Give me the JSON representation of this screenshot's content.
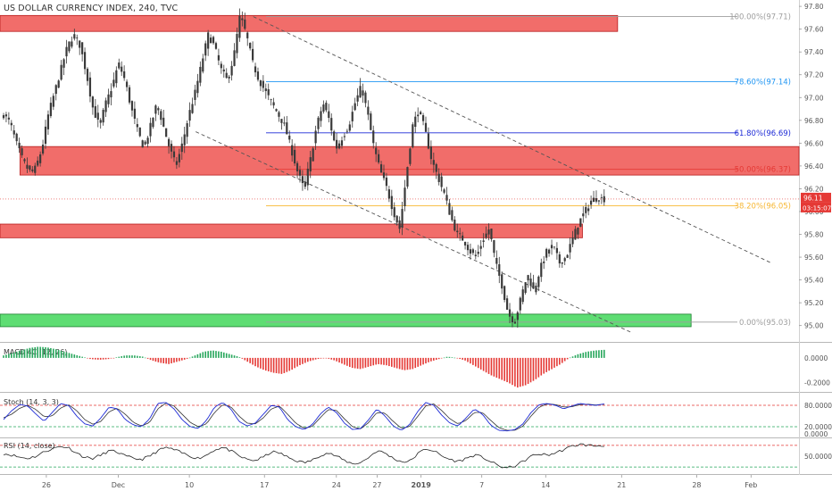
{
  "header": {
    "title": "US DOLLAR CURRENCY INDEX, 240, TVC"
  },
  "colors": {
    "zone_red": "#ef5350",
    "zone_red_border": "#b71c1c",
    "zone_green": "#4cd964",
    "zone_green_border": "#1b7d2e",
    "candle": "#3a3a3a",
    "fib_100": "#9e9e9e",
    "fib_786": "#2196f3",
    "fib_618": "#1e2bd6",
    "fib_500": "#e53935",
    "fib_382": "#f7b733",
    "fib_0": "#9e9e9e",
    "price_badge": "#e53935",
    "macd_pos": "#26a65b",
    "macd_neg": "#e53935",
    "stoch_k": "#1e2bd6",
    "stoch_d": "#333333",
    "rsi": "#222222",
    "upper_band": "#e53935",
    "lower_band": "#26a65b"
  },
  "chart_data": [
    {
      "id": "price",
      "type": "candlestick",
      "title": "US DOLLAR CURRENCY INDEX, 240, TVC",
      "ylim": [
        94.88,
        97.84
      ],
      "y_ticks": [
        "97.80",
        "97.60",
        "97.40",
        "97.20",
        "97.00",
        "96.80",
        "96.60",
        "96.40",
        "96.20",
        "96.00",
        "95.80",
        "95.60",
        "95.40",
        "95.20",
        "95.00"
      ],
      "x_ticks": [
        "26",
        "Dec",
        "10",
        "17",
        "24",
        "27",
        "2019",
        "7",
        "14",
        "21",
        "28",
        "Feb"
      ],
      "x_tick_pos": [
        0.058,
        0.148,
        0.237,
        0.331,
        0.421,
        0.472,
        0.527,
        0.603,
        0.683,
        0.778,
        0.872,
        0.94
      ],
      "path": [
        96.85,
        96.78,
        96.6,
        96.45,
        96.35,
        96.38,
        96.55,
        96.85,
        97.05,
        97.25,
        97.45,
        97.55,
        97.45,
        97.2,
        96.9,
        96.75,
        96.95,
        97.1,
        97.3,
        97.15,
        96.9,
        96.7,
        96.55,
        96.75,
        96.95,
        96.75,
        96.55,
        96.4,
        96.6,
        96.85,
        97.05,
        97.3,
        97.55,
        97.45,
        97.25,
        97.15,
        97.35,
        97.72,
        97.55,
        97.3,
        97.15,
        97.05,
        96.95,
        96.85,
        96.75,
        96.55,
        96.35,
        96.2,
        96.45,
        96.75,
        96.95,
        96.8,
        96.55,
        96.65,
        96.75,
        96.95,
        97.1,
        96.85,
        96.55,
        96.35,
        96.2,
        96.0,
        95.85,
        96.3,
        96.75,
        96.9,
        96.7,
        96.45,
        96.3,
        96.15,
        95.95,
        95.8,
        95.75,
        95.65,
        95.6,
        95.75,
        95.85,
        95.55,
        95.35,
        95.1,
        95.03,
        95.25,
        95.45,
        95.3,
        95.5,
        95.65,
        95.7,
        95.55,
        95.6,
        95.75,
        95.9,
        96.0,
        96.1,
        96.12,
        96.11
      ],
      "zones": [
        {
          "name": "resistance-top",
          "kind": "red",
          "from": 97.58,
          "to": 97.72,
          "x0": 0.0,
          "x1": 0.773
        },
        {
          "name": "mid-zone",
          "kind": "red",
          "from": 96.32,
          "to": 96.57,
          "x0": 0.025,
          "x1": 1.0
        },
        {
          "name": "lower-zone",
          "kind": "red",
          "from": 95.77,
          "to": 95.89,
          "x0": 0.0,
          "x1": 0.729
        },
        {
          "name": "support-zone",
          "kind": "green",
          "from": 94.99,
          "to": 95.1,
          "x0": 0.0,
          "x1": 0.865
        }
      ],
      "fib_levels": [
        {
          "label": "100.00%(97.71)",
          "value": 97.71,
          "color_key": "fib_100"
        },
        {
          "label": "78.60%(97.14)",
          "value": 97.14,
          "color_key": "fib_786"
        },
        {
          "label": "61.80%(96.69)",
          "value": 96.69,
          "color_key": "fib_618"
        },
        {
          "label": "50.00%(96.37)",
          "value": 96.37,
          "color_key": "fib_500"
        },
        {
          "label": "38.20%(96.05)",
          "value": 96.05,
          "color_key": "fib_382"
        },
        {
          "label": "0.00%(95.03)",
          "value": 95.03,
          "color_key": "fib_0"
        }
      ],
      "channel_lines": [
        {
          "name": "upper",
          "from": [
            0.317,
            97.71
          ],
          "to": [
            0.965,
            95.55
          ]
        },
        {
          "name": "lower",
          "from": [
            0.245,
            96.7
          ],
          "to": [
            0.79,
            94.94
          ]
        }
      ],
      "current_price": "96.11",
      "countdown": "03:15:07",
      "current_price_value": 96.11
    },
    {
      "id": "macd",
      "type": "histogram",
      "title": "MACD 4C (12, 26)",
      "ylim": [
        -0.26,
        0.1
      ],
      "y_ticks": [
        "0.0000",
        "-0.2000"
      ],
      "path": [
        0.02,
        0.04,
        0.06,
        0.08,
        0.09,
        0.085,
        0.07,
        0.05,
        0.03,
        0.01,
        -0.01,
        -0.015,
        -0.01,
        0.005,
        0.02,
        0.02,
        0.01,
        -0.02,
        -0.04,
        -0.05,
        -0.03,
        -0.01,
        0.02,
        0.05,
        0.06,
        0.05,
        0.03,
        0.01,
        -0.03,
        -0.07,
        -0.1,
        -0.12,
        -0.13,
        -0.1,
        -0.06,
        -0.03,
        -0.01,
        0.0,
        -0.02,
        -0.05,
        -0.08,
        -0.09,
        -0.07,
        -0.05,
        -0.06,
        -0.08,
        -0.1,
        -0.09,
        -0.06,
        -0.03,
        -0.01,
        0.01,
        0.0,
        -0.02,
        -0.06,
        -0.1,
        -0.14,
        -0.17,
        -0.2,
        -0.24,
        -0.22,
        -0.18,
        -0.13,
        -0.09,
        -0.05,
        0.0,
        0.03,
        0.05,
        0.06,
        0.065
      ]
    },
    {
      "id": "stoch",
      "type": "line",
      "title": "Stoch (14, 3, 3)",
      "ylim": [
        -5,
        105
      ],
      "y_ticks": [
        "80.0000",
        "20.0000",
        "0.0000"
      ],
      "bands": [
        80,
        20
      ],
      "path_k": [
        40,
        65,
        82,
        78,
        55,
        35,
        60,
        85,
        80,
        50,
        28,
        22,
        45,
        75,
        70,
        40,
        25,
        20,
        42,
        85,
        88,
        70,
        40,
        20,
        15,
        38,
        75,
        88,
        70,
        35,
        22,
        30,
        55,
        80,
        75,
        40,
        20,
        12,
        25,
        55,
        75,
        60,
        30,
        12,
        15,
        40,
        70,
        50,
        22,
        10,
        25,
        62,
        88,
        80,
        52,
        30,
        22,
        45,
        70,
        55,
        25,
        10,
        8,
        12,
        28,
        60,
        82,
        85,
        80,
        70,
        78,
        85,
        82,
        80,
        84
      ],
      "path_d": [
        45,
        55,
        72,
        80,
        68,
        48,
        50,
        72,
        82,
        65,
        40,
        27,
        35,
        62,
        72,
        55,
        32,
        22,
        32,
        70,
        86,
        78,
        55,
        32,
        20,
        28,
        60,
        82,
        76,
        50,
        30,
        28,
        45,
        70,
        78,
        55,
        30,
        16,
        20,
        45,
        68,
        66,
        42,
        20,
        14,
        32,
        60,
        58,
        35,
        16,
        20,
        48,
        78,
        84,
        65,
        42,
        28,
        38,
        60,
        60,
        38,
        18,
        10,
        10,
        22,
        50,
        75,
        84,
        82,
        75,
        76,
        82,
        83,
        81,
        83
      ]
    },
    {
      "id": "rsi",
      "type": "line",
      "title": "RSI (14, close)",
      "ylim": [
        22,
        78
      ],
      "y_ticks": [
        "50.0000"
      ],
      "bands": [
        70,
        30
      ],
      "path": [
        55,
        52,
        48,
        46,
        50,
        58,
        64,
        68,
        66,
        56,
        48,
        46,
        52,
        60,
        58,
        50,
        46,
        44,
        50,
        60,
        66,
        62,
        56,
        50,
        46,
        52,
        62,
        66,
        60,
        50,
        44,
        42,
        48,
        58,
        56,
        48,
        42,
        38,
        42,
        52,
        56,
        50,
        42,
        36,
        38,
        48,
        60,
        56,
        46,
        40,
        40,
        54,
        64,
        60,
        50,
        44,
        40,
        46,
        52,
        48,
        40,
        32,
        28,
        32,
        40,
        50,
        54,
        52,
        56,
        62,
        68,
        72,
        70,
        69,
        70
      ]
    }
  ]
}
